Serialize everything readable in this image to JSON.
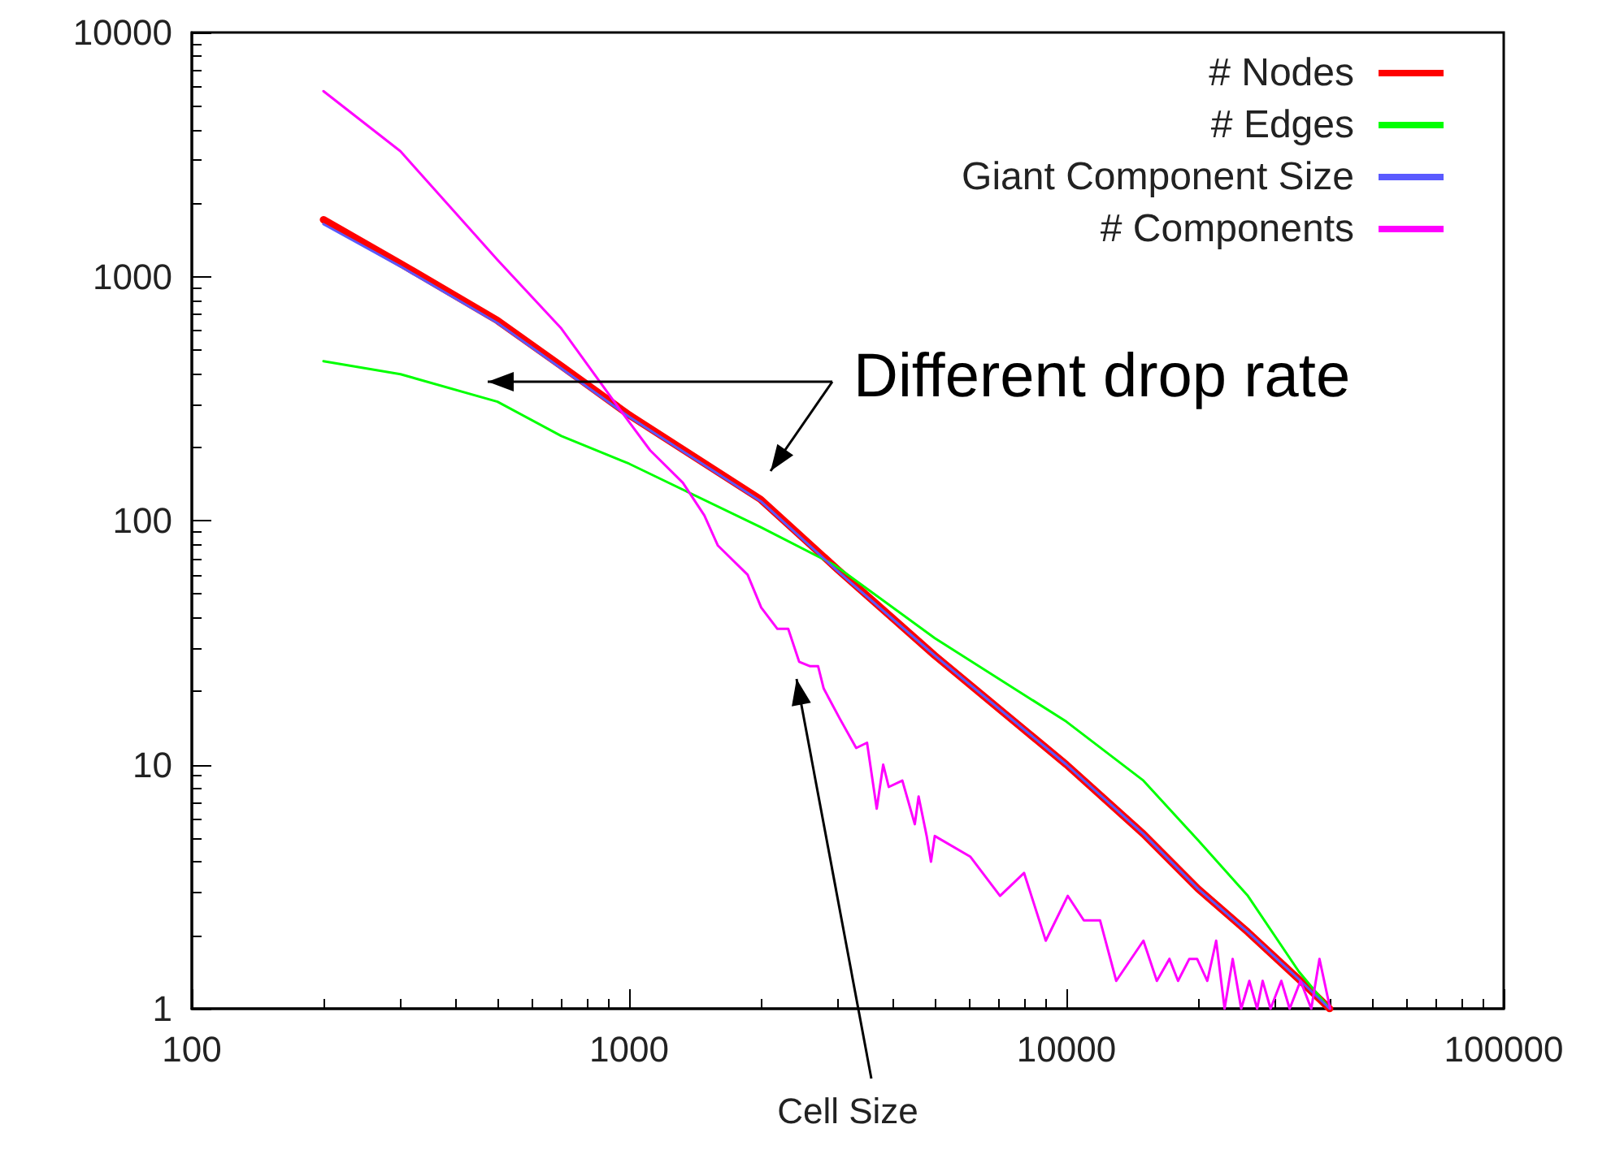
{
  "chart_data": {
    "type": "line",
    "xlabel": "Cell Size",
    "log": "xy",
    "xlim": [
      100,
      100000
    ],
    "ylim": [
      1,
      10000
    ],
    "xticks": [
      100,
      1000,
      10000,
      100000
    ],
    "yticks": [
      1,
      10,
      100,
      1000,
      10000
    ],
    "grid": false,
    "legend": "top right",
    "marker": "none",
    "line_style": "solid",
    "annotations": [
      "Different drop rate"
    ],
    "series": [
      {
        "name": "# Nodes",
        "color": "#ff0000",
        "x": [
          200,
          300,
          500,
          700,
          1000,
          2000,
          3000,
          5000,
          10000,
          15000,
          20000,
          26000,
          34000,
          40000
        ],
        "values": [
          1710,
          1130,
          660,
          430,
          271,
          122,
          63,
          28,
          10,
          5.2,
          3.1,
          2.06,
          1.32,
          1
        ]
      },
      {
        "name": "# Edges",
        "color": "#00ff00",
        "x": [
          200,
          300,
          500,
          700,
          1000,
          2000,
          2940,
          5000,
          10000,
          15000,
          20000,
          26000,
          34000,
          40000
        ],
        "values": [
          450,
          398,
          307,
          222,
          171,
          94,
          66,
          33,
          15,
          8.6,
          4.9,
          2.9,
          1.42,
          1
        ]
      },
      {
        "name": "Giant Component Size",
        "color": "#5a5aff",
        "x": [
          200,
          300,
          500,
          700,
          1000,
          2000,
          3000,
          5000,
          10000,
          15000,
          20000,
          26000,
          34000,
          40000
        ],
        "values": [
          1640,
          1100,
          645,
          420,
          266,
          120,
          62,
          28,
          10,
          5.2,
          3.1,
          2.06,
          1.32,
          1
        ]
      },
      {
        "name": "# Components",
        "color": "#ff00ff",
        "x": [
          200,
          300,
          500,
          700,
          942,
          1117,
          1327,
          1486,
          1596,
          1866,
          2005,
          2183,
          2311,
          2448,
          2594,
          2705,
          2786,
          3034,
          3306,
          3500,
          3683,
          3811,
          3924,
          4215,
          4501,
          4592,
          4791,
          4901,
          5000,
          6025,
          7050,
          8000,
          8970,
          10070,
          10960,
          11940,
          13000,
          15000,
          16100,
          17200,
          18000,
          19100,
          19900,
          21000,
          22000,
          23000,
          24000,
          25100,
          26200,
          27300,
          28100,
          29300,
          31000,
          32400,
          34300,
          36300,
          37900,
          40100
        ],
        "values": [
          5750,
          3260,
          1170,
          612,
          293,
          194,
          143,
          105,
          79,
          60,
          44,
          36,
          36,
          26.4,
          25.3,
          25.3,
          20.5,
          15.4,
          11.7,
          12.3,
          6.6,
          10,
          8.1,
          8.6,
          5.7,
          7.4,
          5.1,
          4,
          5.1,
          4.2,
          2.9,
          3.6,
          1.9,
          2.9,
          2.3,
          2.3,
          1.3,
          1.9,
          1.3,
          1.6,
          1.3,
          1.6,
          1.6,
          1.3,
          1.9,
          1,
          1.6,
          1,
          1.3,
          1,
          1.3,
          1,
          1.3,
          1,
          1.3,
          1,
          1.6,
          1
        ]
      }
    ]
  }
}
